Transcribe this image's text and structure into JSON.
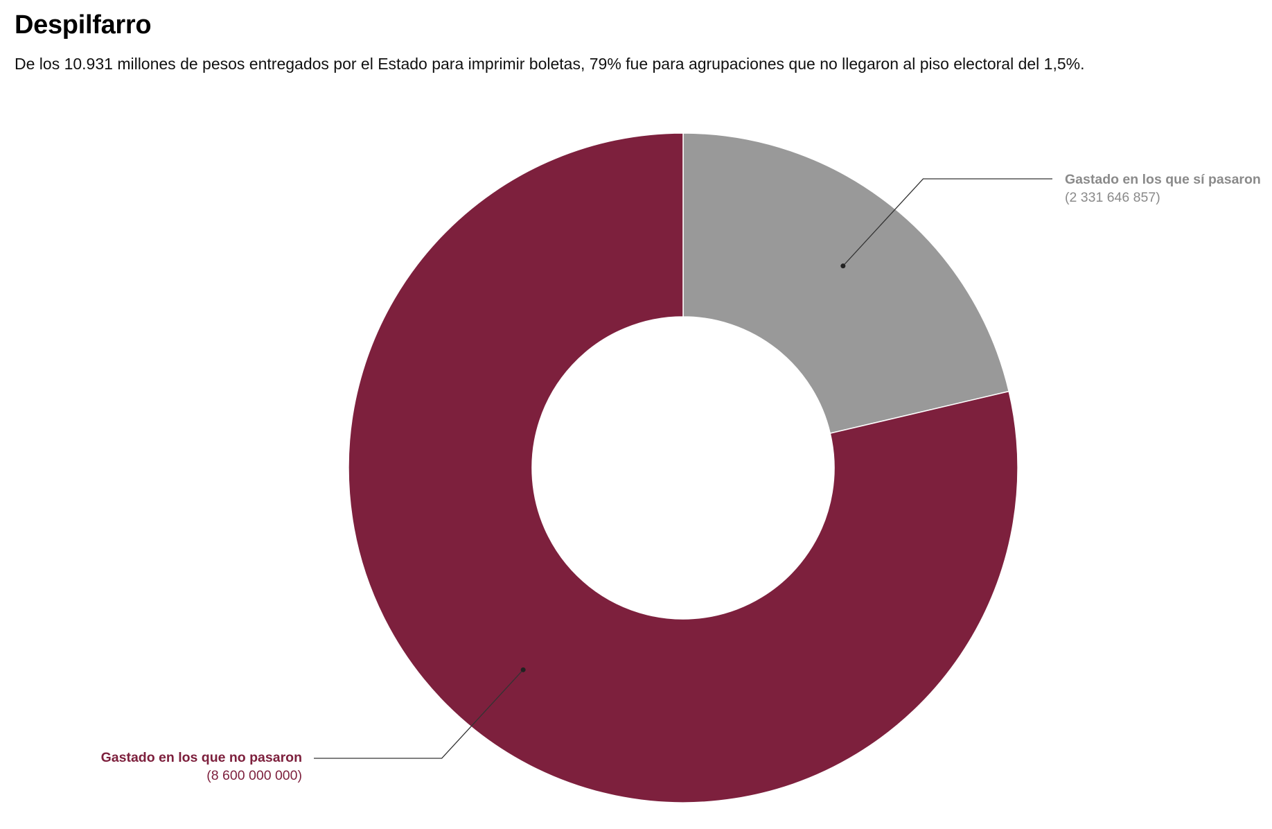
{
  "header": {
    "title": "Despilfarro",
    "subtitle": "De los 10.931 millones de pesos entregados por el Estado para imprimir boletas, 79% fue para agrupaciones que no llegaron al piso electoral del 1,5%."
  },
  "chart_data": {
    "type": "pie",
    "variant": "donut",
    "title": "Despilfarro",
    "subtitle": "De los 10.931 millones de pesos entregados por el Estado para imprimir boletas, 79% fue para agrupaciones que no llegaron al piso electoral del 1,5%.",
    "legend": "none",
    "slices": [
      {
        "name": "Gastado en los que sí pasaron",
        "value": 2331646857,
        "value_label": "(2 331 646 857)",
        "color": "#999999"
      },
      {
        "name": "Gastado en los que no pasaron",
        "value": 8600000000,
        "value_label": "(8 600 000 000)",
        "color": "#7d203d"
      }
    ]
  }
}
